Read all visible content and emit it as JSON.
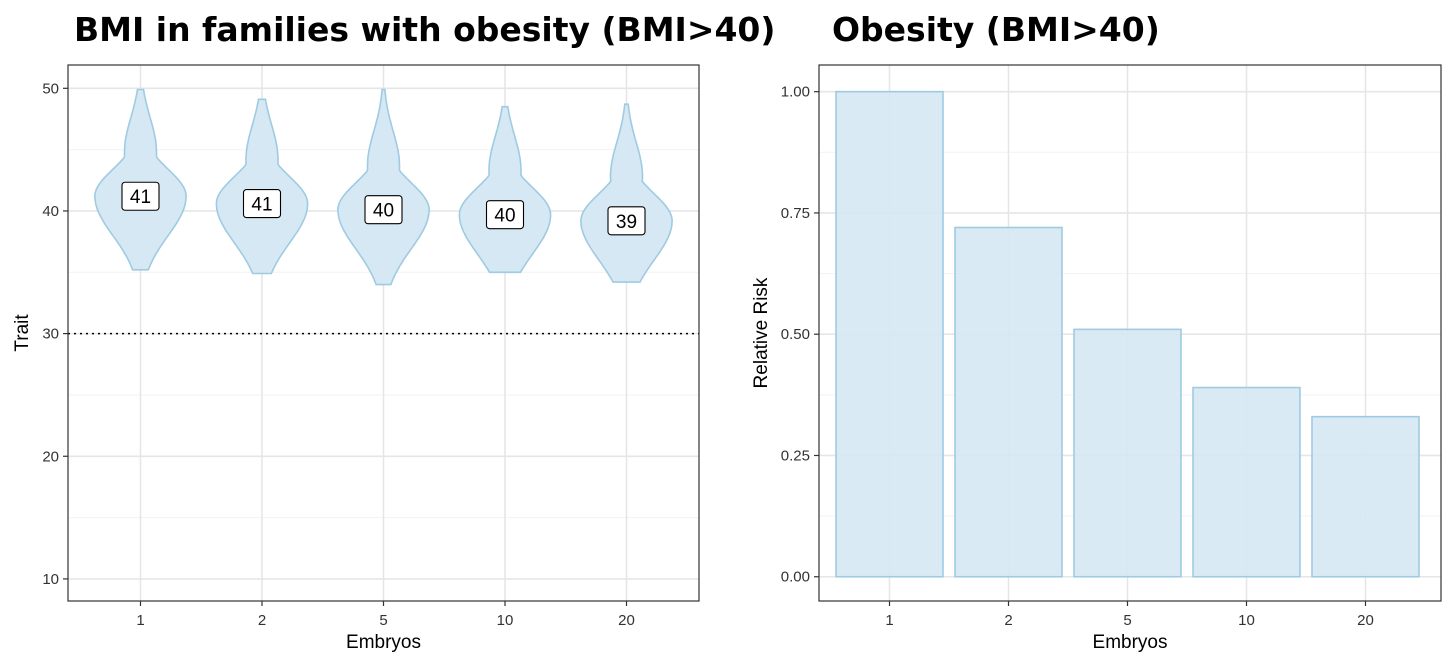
{
  "chart_data": [
    {
      "type": "violin",
      "title": "BMI in families with obesity (BMI>40)",
      "xlabel": "Embryos",
      "ylabel": "Trait",
      "categories": [
        "1",
        "2",
        "5",
        "10",
        "20"
      ],
      "y_ticks": [
        10,
        20,
        30,
        40,
        50
      ],
      "ylim": [
        8.2,
        51.9
      ],
      "reference_line": {
        "y": 30,
        "style": "dotted"
      },
      "series": [
        {
          "category": "1",
          "median": "41",
          "median_value": 41.2,
          "min": 35.2,
          "max": 49.9
        },
        {
          "category": "2",
          "median": "41",
          "median_value": 40.6,
          "min": 34.9,
          "max": 49.1
        },
        {
          "category": "5",
          "median": "40",
          "median_value": 40.1,
          "min": 34.0,
          "max": 49.9
        },
        {
          "category": "10",
          "median": "40",
          "median_value": 39.7,
          "min": 35.0,
          "max": 48.5
        },
        {
          "category": "20",
          "median": "39",
          "median_value": 39.2,
          "min": 34.2,
          "max": 48.7
        }
      ],
      "fill_color": "#d6e8f3",
      "stroke_color": "#9fcbe2",
      "grid": true
    },
    {
      "type": "bar",
      "title": "Obesity (BMI>40)",
      "xlabel": "Embryos",
      "ylabel": "Relative Risk",
      "categories": [
        "1",
        "2",
        "5",
        "10",
        "20"
      ],
      "values": [
        1.0,
        0.72,
        0.51,
        0.39,
        0.33
      ],
      "y_ticks": [
        "0.00",
        "0.25",
        "0.50",
        "0.75",
        "1.00"
      ],
      "ylim": [
        -0.05,
        1.055
      ],
      "fill_color": "#d6e8f3",
      "stroke_color": "#9fcbe2",
      "grid": true
    }
  ]
}
